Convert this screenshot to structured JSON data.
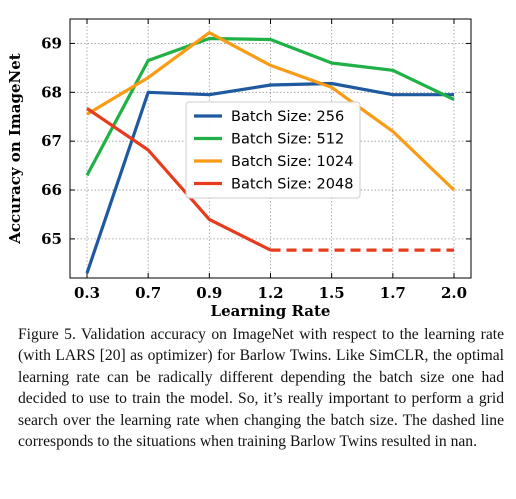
{
  "chart_data": {
    "type": "line",
    "x": [
      0.3,
      0.7,
      0.9,
      1.2,
      1.5,
      1.7,
      2.0
    ],
    "xtick_labels": [
      "0.3",
      "0.7",
      "0.9",
      "1.2",
      "1.5",
      "1.7",
      "2.0"
    ],
    "yticks": [
      65,
      66,
      67,
      68,
      69
    ],
    "ylim": [
      64.2,
      69.5
    ],
    "xlabel": "Learning Rate",
    "ylabel": "Accuracy on ImageNet",
    "grid": true,
    "legend_position": "center",
    "series": [
      {
        "name": "Batch Size: 256",
        "color": "#1f5aa0",
        "values": [
          64.3,
          68.0,
          67.95,
          68.15,
          68.18,
          67.95,
          67.95
        ]
      },
      {
        "name": "Batch Size: 512",
        "color": "#1fb046",
        "values": [
          66.3,
          68.65,
          69.1,
          69.08,
          68.6,
          68.45,
          67.85
        ]
      },
      {
        "name": "Batch Size: 1024",
        "color": "#f99b15",
        "values": [
          67.55,
          68.3,
          69.22,
          68.55,
          68.1,
          67.2,
          66.0
        ]
      },
      {
        "name": "Batch Size: 2048",
        "color": "#e63b1c",
        "values": [
          67.67,
          66.82,
          65.4,
          64.77,
          null,
          null,
          null
        ],
        "nan_dashed_value": 64.77
      }
    ]
  },
  "caption": "Figure 5.  Validation accuracy on ImageNet with respect to the learning rate (with LARS [20] as optimizer) for Barlow Twins. Like SimCLR, the optimal learning rate can be radically different depending the batch size one had decided to use to train the model. So, it’s really important to perform a grid search over the learning rate when changing the batch size. The dashed line corresponds to the situations when training Barlow Twins resulted in nan."
}
